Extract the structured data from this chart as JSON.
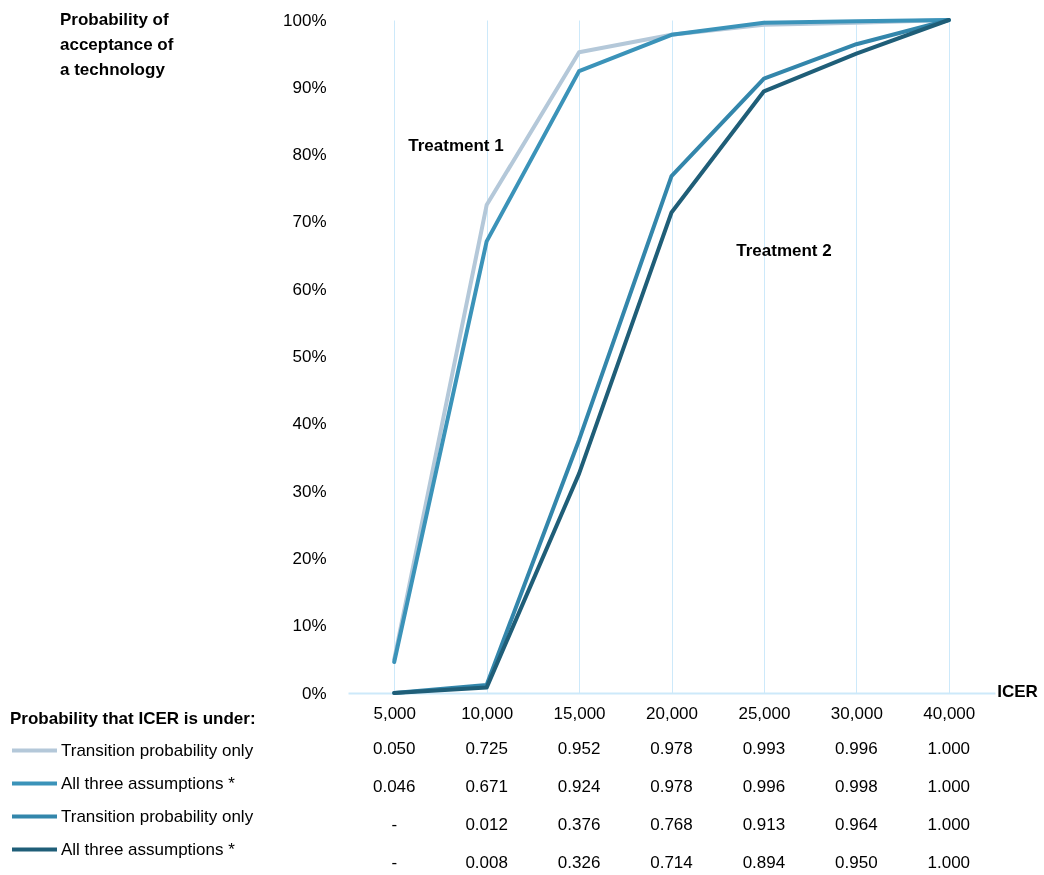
{
  "chart_data": {
    "type": "line",
    "xlabel": "ICER",
    "legend_title": "Probability that ICER is under:",
    "legend": "bottom left",
    "grid": "x",
    "line_style": "solid",
    "marker": "none",
    "categories": [
      "5,000",
      "10,000",
      "15,000",
      "20,000",
      "25,000",
      "30,000",
      "40,000"
    ],
    "ylim": [
      0,
      1
    ],
    "yticks": [
      {
        "value": 0,
        "label": "0%"
      },
      {
        "value": 0.1,
        "label": "10%"
      },
      {
        "value": 0.2,
        "label": "20%"
      },
      {
        "value": 0.3,
        "label": "30%"
      },
      {
        "value": 0.4,
        "label": "40%"
      },
      {
        "value": 0.5,
        "label": "50%"
      },
      {
        "value": 0.6,
        "label": "60%"
      },
      {
        "value": 0.7,
        "label": "70%"
      },
      {
        "value": 0.8,
        "label": "80%"
      },
      {
        "value": 0.9,
        "label": "90%"
      },
      {
        "value": 1,
        "label": "100%"
      }
    ],
    "series": [
      {
        "name": "Transition probability only",
        "color": "#b4c8d9",
        "values": [
          0.05,
          0.725,
          0.952,
          0.978,
          0.993,
          0.996,
          1.0
        ],
        "value_labels": [
          "0.050",
          "0.725",
          "0.952",
          "0.978",
          "0.993",
          "0.996",
          "1.000"
        ]
      },
      {
        "name": "All three assumptions *",
        "color": "#3b93b9",
        "values": [
          0.046,
          0.671,
          0.924,
          0.978,
          0.996,
          0.998,
          1.0
        ],
        "value_labels": [
          "0.046",
          "0.671",
          "0.924",
          "0.978",
          "0.996",
          "0.998",
          "1.000"
        ]
      },
      {
        "name": "Transition probability only",
        "color": "#3386ab",
        "values": [
          0,
          0.012,
          0.376,
          0.768,
          0.913,
          0.964,
          1.0
        ],
        "value_labels": [
          "-",
          "0.012",
          "0.376",
          "0.768",
          "0.913",
          "0.964",
          "1.000"
        ]
      },
      {
        "name": "All three assumptions *",
        "color": "#1f5e78",
        "values": [
          0,
          0.008,
          0.326,
          0.714,
          0.894,
          0.95,
          1.0
        ],
        "value_labels": [
          "-",
          "0.008",
          "0.326",
          "0.714",
          "0.894",
          "0.950",
          "1.000"
        ]
      }
    ],
    "annotations": [
      "Probability of acceptance of a technology",
      "Treatment 1",
      "Treatment 2"
    ]
  }
}
